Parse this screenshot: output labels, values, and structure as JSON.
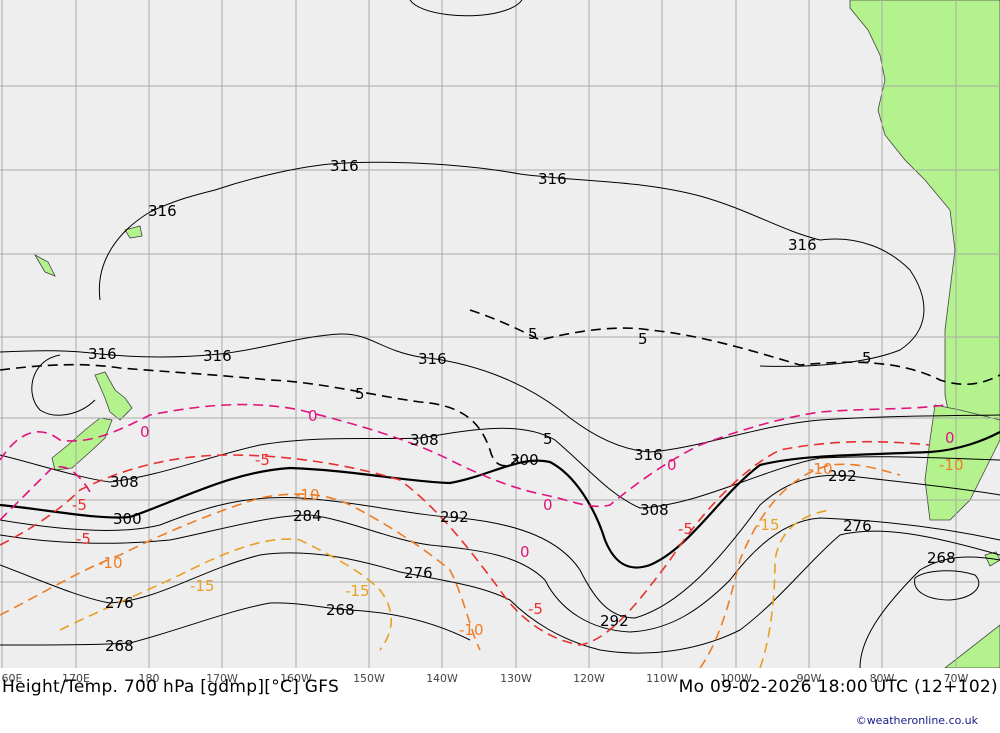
{
  "title": "Height/Temp. 700 hPa [gdmp][°C] GFS",
  "datetime": "Mo 09-02-2026 18:00 UTC (12+102)",
  "credit": "©weatheronline.co.uk",
  "colors": {
    "ocean": "#eeeeee",
    "land": "#b3f28c",
    "grid": "#aaaaaa",
    "height_contour": "#000000",
    "temp_0": "#e0137c",
    "temp_neg5": "#e8302e",
    "temp_neg10": "#ee7c24",
    "temp_neg15": "#e8a024",
    "temp_5": "#000000"
  },
  "lon_labels": [
    "60E",
    "170E",
    "180",
    "170W",
    "160W",
    "150W",
    "140W",
    "130W",
    "120W",
    "110W",
    "100W",
    "90W",
    "80W",
    "70W"
  ],
  "height_labels": [
    "316",
    "316",
    "316",
    "316",
    "316",
    "316",
    "316",
    "316",
    "308",
    "308",
    "308",
    "300",
    "300",
    "292",
    "292",
    "292",
    "284",
    "276",
    "276",
    "276",
    "268",
    "268",
    "268"
  ],
  "temp_labels": [
    "5",
    "5",
    "5",
    "5",
    "5",
    "0",
    "0",
    "0",
    "0",
    "0",
    "0",
    "-5",
    "-5",
    "-5",
    "-5",
    "-5",
    "-10",
    "-10",
    "-10",
    "-10",
    "-10",
    "-15",
    "-15",
    "-15"
  ]
}
